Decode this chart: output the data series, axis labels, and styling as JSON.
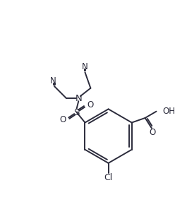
{
  "bg_color": "#ffffff",
  "line_color": "#2b2b3b",
  "line_width": 1.4,
  "font_size": 8.5,
  "figsize": [
    2.65,
    2.93
  ],
  "dpi": 100,
  "xlim": [
    0,
    10
  ],
  "ylim": [
    0,
    11
  ]
}
